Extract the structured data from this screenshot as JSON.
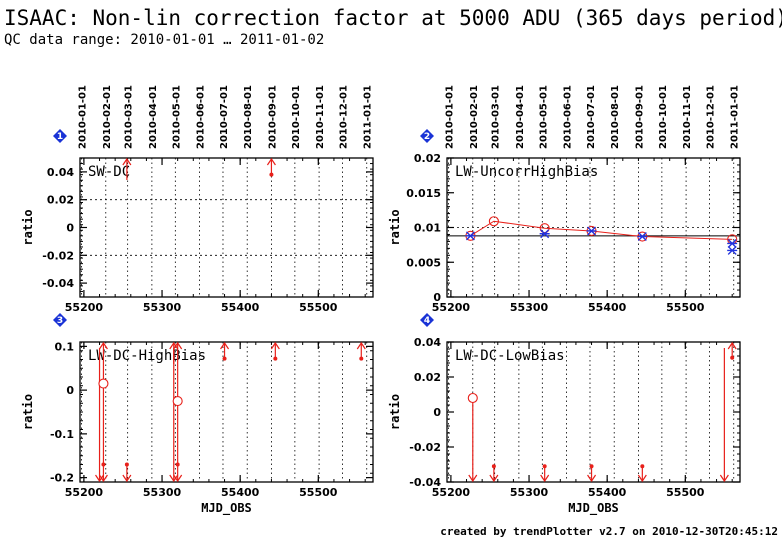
{
  "header": {
    "title": "ISAAC: Non-lin correction factor at 5000 ADU (365 days period)",
    "subtitle": "QC data range: 2010-01-01 … 2011-01-02"
  },
  "footer": "created by trendPlotter v2.7 on 2010-12-30T20:45:12",
  "colors": {
    "data": "#e8201a",
    "blue": "#2233dd",
    "badge": "#1a33d6"
  },
  "chart_data": [
    {
      "type": "scatter",
      "badge": "1",
      "title": "SW-DC",
      "xlabel": "",
      "ylabel": "ratio",
      "xlim": [
        55195,
        55570
      ],
      "ylim": [
        -0.05,
        0.05
      ],
      "yticks": [
        -0.04,
        -0.02,
        0,
        0.02,
        0.04
      ],
      "ytick_labels": [
        "-0.04",
        "-0.02",
        "0",
        "0.02",
        "0.04"
      ],
      "xticks": [
        55200,
        55300,
        55400,
        55500
      ],
      "xtick_labels": [
        "55200",
        "55300",
        "55400",
        "55500"
      ],
      "reference_lines": [
        0.02,
        -0.02
      ],
      "top_axis_dates": [
        "2010-01-01",
        "2010-02-01",
        "2010-03-01",
        "2010-04-01",
        "2010-05-01",
        "2010-06-01",
        "2010-07-01",
        "2010-08-01",
        "2010-09-01",
        "2010-10-01",
        "2010-11-01",
        "2010-12-01",
        "2011-01-01"
      ],
      "date_gridlines": true,
      "points": [
        {
          "x": 55440,
          "y": 0.038
        }
      ],
      "offscale_high": [
        55255,
        55440
      ],
      "offscale_low": []
    },
    {
      "type": "line",
      "badge": "2",
      "title": "LW-UncorrHighBias",
      "xlabel": "",
      "ylabel": "ratio",
      "xlim": [
        55195,
        55570
      ],
      "ylim": [
        0,
        0.02
      ],
      "yticks": [
        0,
        0.005,
        0.01,
        0.015,
        0.02
      ],
      "ytick_labels": [
        "0",
        "0.005",
        "0.01",
        "0.015",
        "0.02"
      ],
      "xticks": [
        55200,
        55300,
        55400,
        55500
      ],
      "xtick_labels": [
        "55200",
        "55300",
        "55400",
        "55500"
      ],
      "reference_lines": [
        0.01
      ],
      "mean_line": 0.0088,
      "top_axis_dates": [
        "2010-01-01",
        "2010-02-01",
        "2010-03-01",
        "2010-04-01",
        "2010-05-01",
        "2010-06-01",
        "2010-07-01",
        "2010-08-01",
        "2010-09-01",
        "2010-10-01",
        "2010-11-01",
        "2010-12-01",
        "2011-01-01"
      ],
      "date_gridlines": true,
      "series": [
        {
          "name": "",
          "marker": "open-circle",
          "points": [
            {
              "x": 55225,
              "y": 0.0088
            },
            {
              "x": 55255,
              "y": 0.0109
            },
            {
              "x": 55320,
              "y": 0.0099
            },
            {
              "x": 55380,
              "y": 0.0095
            },
            {
              "x": 55445,
              "y": 0.0087
            },
            {
              "x": 55560,
              "y": 0.0083
            }
          ]
        },
        {
          "name": "",
          "marker": "star",
          "points": [
            {
              "x": 55225,
              "y": 0.0088
            },
            {
              "x": 55320,
              "y": 0.0091
            },
            {
              "x": 55380,
              "y": 0.0095
            },
            {
              "x": 55445,
              "y": 0.0087
            },
            {
              "x": 55560,
              "y": 0.0077
            },
            {
              "x": 55560,
              "y": 0.0067
            }
          ]
        }
      ]
    },
    {
      "type": "scatter",
      "badge": "3",
      "title": "LW-DC-HighBias",
      "xlabel": "MJD_OBS",
      "ylabel": "ratio",
      "xlim": [
        55195,
        55570
      ],
      "ylim": [
        -0.21,
        0.11
      ],
      "yticks": [
        -0.2,
        -0.1,
        0,
        0.1
      ],
      "ytick_labels": [
        "-0.2",
        "-0.1",
        "0",
        "0.1"
      ],
      "xticks": [
        55200,
        55300,
        55400,
        55500
      ],
      "xtick_labels": [
        "55200",
        "55300",
        "55400",
        "55500"
      ],
      "reference_lines": [],
      "top_axis_dates": [],
      "date_gridlines": true,
      "open_points": [
        {
          "x": 55225,
          "y": 0.015
        },
        {
          "x": 55320,
          "y": -0.025
        }
      ],
      "points": [
        {
          "x": 55380,
          "y": 0.072
        },
        {
          "x": 55445,
          "y": 0.072
        },
        {
          "x": 55555,
          "y": 0.072
        },
        {
          "x": 55225,
          "y": -0.17
        },
        {
          "x": 55255,
          "y": -0.17
        },
        {
          "x": 55320,
          "y": -0.17
        }
      ],
      "offscale_high": [
        55225,
        55315,
        55320,
        55380,
        55445,
        55555
      ],
      "offscale_low": [
        55220,
        55225,
        55255,
        55315,
        55320
      ]
    },
    {
      "type": "scatter",
      "badge": "4",
      "title": "LW-DC-LowBias",
      "xlabel": "MJD_OBS",
      "ylabel": "ratio",
      "xlim": [
        55195,
        55570
      ],
      "ylim": [
        -0.04,
        0.04
      ],
      "yticks": [
        -0.04,
        -0.02,
        0,
        0.02,
        0.04
      ],
      "ytick_labels": [
        "-0.04",
        "-0.02",
        "0",
        "0.02",
        "0.04"
      ],
      "xticks": [
        55200,
        55300,
        55400,
        55500
      ],
      "xtick_labels": [
        "55200",
        "55300",
        "55400",
        "55500"
      ],
      "reference_lines": [],
      "top_axis_dates": [],
      "date_gridlines": true,
      "open_points": [
        {
          "x": 55228,
          "y": 0.008
        }
      ],
      "points": [
        {
          "x": 55255,
          "y": -0.031
        },
        {
          "x": 55320,
          "y": -0.031
        },
        {
          "x": 55380,
          "y": -0.031
        },
        {
          "x": 55445,
          "y": -0.031
        },
        {
          "x": 55560,
          "y": 0.031
        }
      ],
      "offscale_high": [
        55560
      ],
      "offscale_low": [
        55228,
        55255,
        55320,
        55380,
        55445,
        55550
      ]
    }
  ]
}
